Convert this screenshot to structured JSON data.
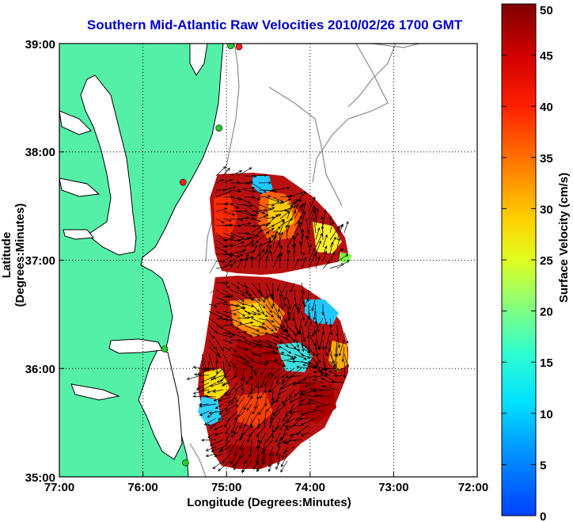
{
  "title": "Southern Mid-Atlantic Raw Velocities 2010/02/26 1700 GMT",
  "axes": {
    "xlabel": "Longitude (Degrees:Minutes)",
    "ylabel": "Latitude (Degrees:Minutes)",
    "x_ticks": [
      "77:00",
      "76:00",
      "75:00",
      "74:00",
      "73:00",
      "72:00"
    ],
    "y_ticks": [
      "39:00",
      "38:00",
      "37:00",
      "36:00",
      "35:00"
    ]
  },
  "colorbar": {
    "label": "Surface Velocity (cm/s)",
    "min": 0,
    "max": 50,
    "ticks": [
      "50",
      "45",
      "40",
      "35",
      "30",
      "25",
      "20",
      "15",
      "10",
      "5",
      "0"
    ]
  },
  "colors": {
    "land": "#55f0a8",
    "coastline": "#000000",
    "title": "#0000cc",
    "bathymetry": "#8c8c8c"
  },
  "stations": [
    {
      "name": "station-red-north",
      "lon": -74.85,
      "lat": 38.97,
      "color": "#ff2020"
    },
    {
      "name": "station-green-north",
      "lon": -74.95,
      "lat": 38.98,
      "color": "#22cc33"
    },
    {
      "name": "station-green-delmarva",
      "lon": -75.09,
      "lat": 38.22,
      "color": "#22cc33"
    },
    {
      "name": "station-red-delmarva",
      "lon": -75.52,
      "lat": 37.72,
      "color": "#ff2020"
    },
    {
      "name": "station-green-va",
      "lon": -75.74,
      "lat": 36.18,
      "color": "#22cc33"
    },
    {
      "name": "station-green-hatteras",
      "lon": -75.49,
      "lat": 35.13,
      "color": "#22cc33"
    }
  ]
}
